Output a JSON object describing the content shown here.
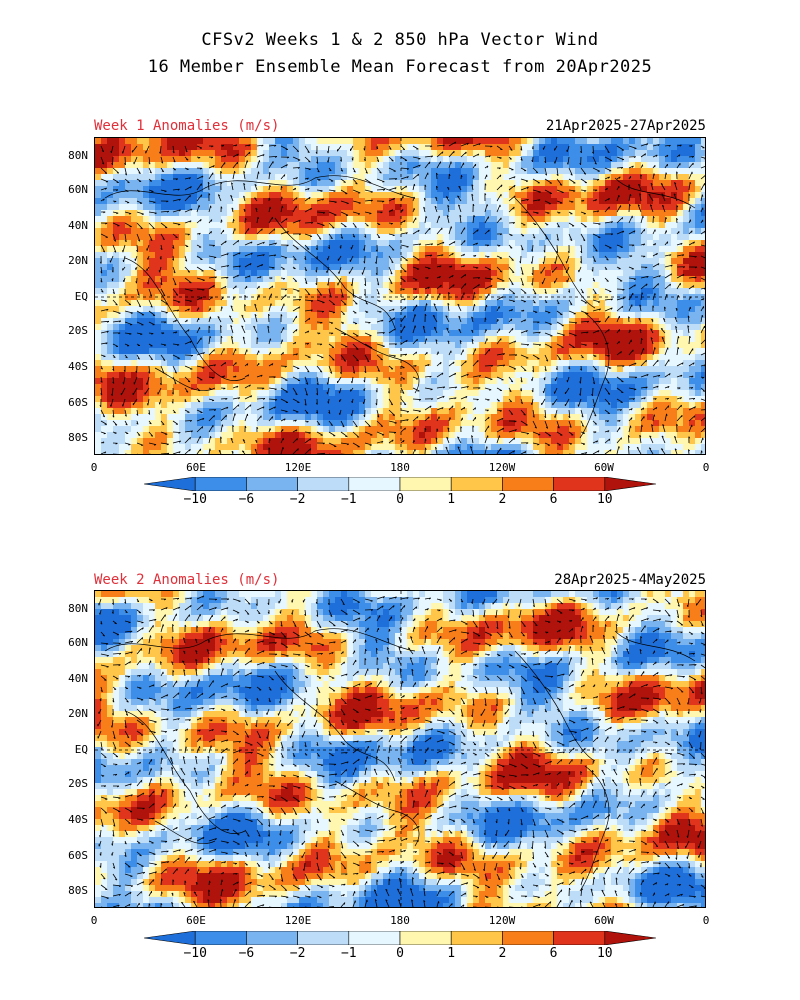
{
  "title": {
    "line1": "CFSv2 Weeks 1 & 2 850 hPa Vector Wind",
    "line2": "16 Member Ensemble Mean Forecast from 20Apr2025"
  },
  "panels": [
    {
      "label": "Week 1 Anomalies (m/s)",
      "dates": "21Apr2025-27Apr2025"
    },
    {
      "label": "Week 2 Anomalies (m/s)",
      "dates": "28Apr2025-4May2025"
    }
  ],
  "lat_labels": [
    "80N",
    "60N",
    "40N",
    "20N",
    "EQ",
    "20S",
    "40S",
    "60S",
    "80S"
  ],
  "lon_labels": [
    "0",
    "60E",
    "120E",
    "180",
    "120W",
    "60W",
    "0"
  ],
  "colorbar": {
    "labels": [
      "-10",
      "-6",
      "-2",
      "-1",
      "0",
      "1",
      "2",
      "6",
      "10"
    ],
    "colors": [
      "#1e6fd9",
      "#3d8ee8",
      "#7ab4f0",
      "#bcdcf8",
      "#e6f7ff",
      "#fff6b0",
      "#ffc64a",
      "#f87e1a",
      "#e0341c",
      "#b0120c"
    ]
  }
}
